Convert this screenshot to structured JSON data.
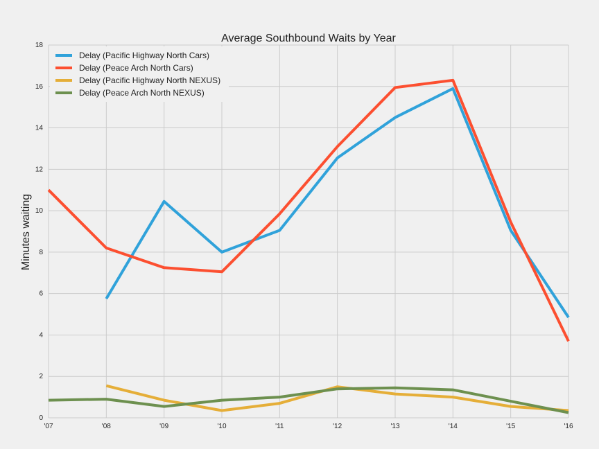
{
  "chart_data": {
    "type": "line",
    "title": "Average Southbound Waits by Year",
    "xlabel": "",
    "ylabel": "Minutes waiting",
    "categories": [
      "'07",
      "'08",
      "'09",
      "'10",
      "'11",
      "'12",
      "'13",
      "'14",
      "'15",
      "'16"
    ],
    "ylim": [
      0,
      18
    ],
    "yticks": [
      0,
      2,
      4,
      6,
      8,
      10,
      12,
      14,
      16,
      18
    ],
    "grid": true,
    "legend_position": "top-left",
    "series": [
      {
        "name": "Delay (Pacific Highway North Cars)",
        "color": "#30a2da",
        "values": [
          null,
          5.75,
          10.45,
          8.0,
          9.05,
          12.55,
          14.5,
          15.9,
          9.05,
          4.85
        ]
      },
      {
        "name": "Delay (Peace Arch North Cars)",
        "color": "#fc4f30",
        "values": [
          11.0,
          8.2,
          7.25,
          7.05,
          9.85,
          13.1,
          15.95,
          16.3,
          9.45,
          3.7
        ]
      },
      {
        "name": "Delay (Pacific Highway North NEXUS)",
        "color": "#e5ae38",
        "values": [
          null,
          1.55,
          0.85,
          0.35,
          0.7,
          1.5,
          1.15,
          1.0,
          0.55,
          0.35
        ]
      },
      {
        "name": "Delay (Peace Arch North NEXUS)",
        "color": "#6d904f",
        "values": [
          0.85,
          0.9,
          0.55,
          0.85,
          1.0,
          1.4,
          1.45,
          1.35,
          0.8,
          0.25
        ]
      }
    ]
  }
}
